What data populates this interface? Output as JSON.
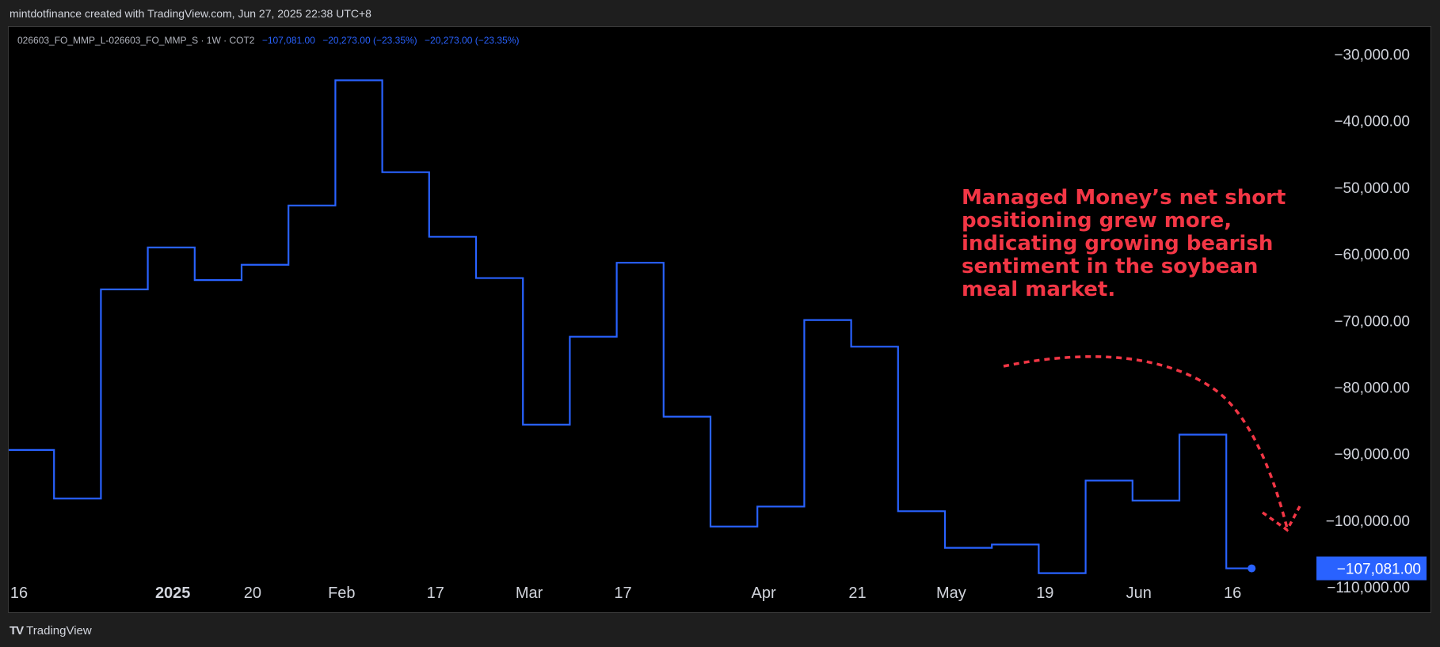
{
  "header": {
    "caption": "mintdotfinance created with TradingView.com, Jun 27, 2025 22:38 UTC+8"
  },
  "legend": {
    "symbol": "026603_FO_MMP_L-026603_FO_MMP_S · 1W · COT2",
    "value1": "−107,081.00",
    "value2": "−20,273.00 (−23.35%)",
    "value3": "−20,273.00 (−23.35%)"
  },
  "annotation": {
    "lines": [
      "Managed Money’s net short",
      "positioning grew more,",
      "indicating growing bearish",
      "sentiment in the soybean",
      "meal market."
    ],
    "color": "#f23645"
  },
  "footer": {
    "brand": "TradingView",
    "brand_icon": "tradingview-logo-icon"
  },
  "colors": {
    "line": "#2962ff",
    "badge": "#2962ff",
    "annotation": "#f23645"
  },
  "chart_data": {
    "type": "line",
    "style": "step",
    "series": [
      {
        "values": [
          -89300,
          -96600,
          -65200,
          -58900,
          -63800,
          -61500,
          -52600,
          -33800,
          -47600,
          -57300,
          -63500,
          -85500,
          -72300,
          -61200,
          -84300,
          -100800,
          -97800,
          -69800,
          -73800,
          -98500,
          -104000,
          -103500,
          -107800,
          -93900,
          -96900,
          -87000,
          -107081
        ]
      }
    ],
    "ylim": [
      -112000,
      -26500
    ],
    "y_ticks": [
      {
        "value": -30000,
        "label": "−30,000.00"
      },
      {
        "value": -40000,
        "label": "−40,000.00"
      },
      {
        "value": -50000,
        "label": "−50,000.00"
      },
      {
        "value": -60000,
        "label": "−60,000.00"
      },
      {
        "value": -70000,
        "label": "−70,000.00"
      },
      {
        "value": -80000,
        "label": "−80,000.00"
      },
      {
        "value": -90000,
        "label": "−90,000.00"
      },
      {
        "value": -100000,
        "label": "−100,000.00"
      },
      {
        "value": -110000,
        "label": "−110,000.00"
      }
    ],
    "x_ticks": [
      {
        "index": 0,
        "label": "16",
        "bold": false
      },
      {
        "index": 3.5,
        "label": "2025",
        "bold": true
      },
      {
        "index": 5.2,
        "label": "20",
        "bold": false
      },
      {
        "index": 7.1,
        "label": "Feb",
        "bold": false
      },
      {
        "index": 9.1,
        "label": "17",
        "bold": false
      },
      {
        "index": 11.1,
        "label": "Mar",
        "bold": false
      },
      {
        "index": 13.1,
        "label": "17",
        "bold": false
      },
      {
        "index": 16.1,
        "label": "Apr",
        "bold": false
      },
      {
        "index": 18.1,
        "label": "21",
        "bold": false
      },
      {
        "index": 20.1,
        "label": "May",
        "bold": false
      },
      {
        "index": 22.1,
        "label": "19",
        "bold": false
      },
      {
        "index": 24.1,
        "label": "Jun",
        "bold": false
      },
      {
        "index": 26.1,
        "label": "16",
        "bold": false
      }
    ],
    "last_value_label": "−107,081.00",
    "grid": false
  }
}
